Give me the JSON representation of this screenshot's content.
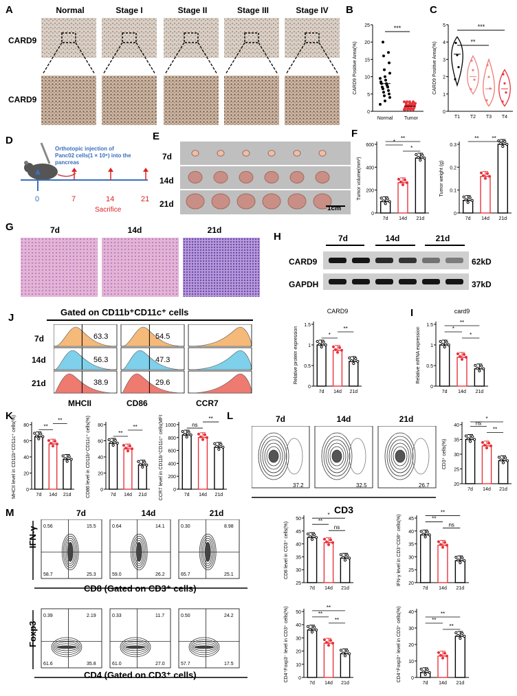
{
  "panels": {
    "A": "A",
    "B": "B",
    "C": "C",
    "D": "D",
    "E": "E",
    "F": "F",
    "G": "G",
    "H": "H",
    "I": "I",
    "J": "J",
    "K": "K",
    "L": "L",
    "M": "M"
  },
  "panel_A": {
    "stages": [
      "Normal",
      "Stage I",
      "Stage II",
      "Stage III",
      "Stage IV"
    ],
    "row_label": "CARD9"
  },
  "panel_D": {
    "injection_text": "Orthotopic injection of Panc02 cells(1 × 10⁶) into the pancreas",
    "timepoints": [
      "0",
      "7",
      "14",
      "21"
    ],
    "sacrifice": "Sacrifice"
  },
  "panel_E": {
    "rows": [
      "7d",
      "14d",
      "21d"
    ],
    "scale": "1cm"
  },
  "panel_G": {
    "cols": [
      "7d",
      "14d",
      "21d"
    ]
  },
  "panel_H": {
    "cols": [
      "7d",
      "14d",
      "21d"
    ],
    "bands": [
      "CARD9",
      "GAPDH"
    ],
    "sizes": [
      "62kD",
      "37kD"
    ]
  },
  "panel_J": {
    "header": "Gated on CD11b⁺CD11c⁺ cells",
    "rows": [
      "7d",
      "14d",
      "21d"
    ],
    "markers": [
      "MHCII",
      "CD86",
      "CCR7"
    ],
    "values": [
      [
        "63.3",
        "54.5"
      ],
      [
        "56.3",
        "47.3"
      ],
      [
        "38.9",
        "29.6"
      ]
    ]
  },
  "panel_L": {
    "cols": [
      "7d",
      "14d",
      "21d"
    ],
    "xlabel": "CD3",
    "values": [
      "37.2",
      "32.5",
      "26.7"
    ]
  },
  "panel_M": {
    "cols": [
      "7d",
      "14d",
      "21d"
    ],
    "row1_y": "IFN-γ",
    "row1_x": "CD8 (Gated on CD3⁺ cells)",
    "row1_q": [
      [
        "0.56",
        "15.5",
        "58.7",
        "25.3"
      ],
      [
        "0.64",
        "14.1",
        "59.0",
        "26.2"
      ],
      [
        "0.30",
        "8.98",
        "65.7",
        "25.1"
      ]
    ],
    "row2_y": "Foxp3",
    "row2_x": "CD4 (Gated on CD3⁺ cells)",
    "row2_q": [
      [
        "0.39",
        "2.19",
        "61.6",
        "35.8"
      ],
      [
        "0.33",
        "11.7",
        "61.0",
        "27.0"
      ],
      [
        "0.50",
        "24.2",
        "57.7",
        "17.5"
      ]
    ]
  },
  "colors": {
    "black": "#000000",
    "red": "#e8333a",
    "pink": "#f08080",
    "orange": "#f5b97a",
    "blue": "#7fd0ea",
    "salmon": "#ee7a70"
  },
  "chart_data": [
    {
      "id": "B",
      "type": "scatter",
      "categories": [
        "Normal",
        "Tumor"
      ],
      "ylabel": "CARD9 Positive Area(%)",
      "ylim": [
        0,
        25
      ],
      "yticks": [
        0,
        5,
        10,
        15,
        20,
        25
      ],
      "means": [
        8,
        1.5
      ],
      "sig": [
        "***"
      ]
    },
    {
      "id": "C",
      "type": "violin",
      "categories": [
        "T1",
        "T2",
        "T3",
        "T4"
      ],
      "ylabel": "CARD9 Positive Area(%)",
      "ylim": [
        0,
        5
      ],
      "yticks": [
        0,
        1,
        2,
        3,
        4,
        5
      ],
      "medians": [
        3.3,
        2.0,
        1.3,
        1.3
      ],
      "sig": [
        "**",
        "***"
      ]
    },
    {
      "id": "F1",
      "type": "bar",
      "categories": [
        "7d",
        "14d",
        "21d"
      ],
      "ylabel": "Tumor volume(mm³)",
      "ylim": [
        0,
        600
      ],
      "yticks": [
        0,
        200,
        400,
        600
      ],
      "values": [
        100,
        265,
        480
      ],
      "sig": [
        "*",
        "*",
        "**"
      ]
    },
    {
      "id": "F2",
      "type": "bar",
      "categories": [
        "7d",
        "14d",
        "21d"
      ],
      "ylabel": "Tumor weight (g)",
      "ylim": [
        0,
        0.3
      ],
      "yticks": [
        0.0,
        0.1,
        0.2,
        0.3
      ],
      "values": [
        0.055,
        0.16,
        0.3
      ],
      "sig": [
        "**",
        "**"
      ]
    },
    {
      "id": "H2",
      "type": "bar",
      "title": "CARD9",
      "categories": [
        "7d",
        "14d",
        "21d"
      ],
      "ylabel": "Relative protein expression",
      "ylim": [
        0,
        1.5
      ],
      "yticks": [
        0.0,
        0.5,
        1.0,
        1.5
      ],
      "values": [
        1.0,
        0.87,
        0.6
      ],
      "sig": [
        "*",
        "**"
      ]
    },
    {
      "id": "I",
      "type": "bar",
      "title": "card9",
      "categories": [
        "7d",
        "14d",
        "21d"
      ],
      "ylabel": "Relative mRNA expression",
      "ylim": [
        0,
        1.5
      ],
      "yticks": [
        0.0,
        0.5,
        1.0,
        1.5
      ],
      "values": [
        1.0,
        0.7,
        0.42
      ],
      "sig": [
        "*",
        "*",
        "**"
      ]
    },
    {
      "id": "K1",
      "type": "bar",
      "categories": [
        "7d",
        "14d",
        "21d"
      ],
      "ylabel": "MHCII level in CD11b⁺CD11c⁺ cells(%)",
      "ylim": [
        0,
        80
      ],
      "yticks": [
        0,
        20,
        40,
        60,
        80
      ],
      "values": [
        65,
        56,
        37
      ],
      "sig": [
        "**",
        "**"
      ]
    },
    {
      "id": "K2",
      "type": "bar",
      "categories": [
        "7d",
        "14d",
        "21d"
      ],
      "ylabel": "CD86 level in CD11b⁺CD11c⁺ cells(%)",
      "ylim": [
        0,
        80
      ],
      "yticks": [
        0,
        20,
        40,
        60,
        80
      ],
      "values": [
        57,
        50,
        30
      ],
      "sig": [
        "**",
        "**"
      ]
    },
    {
      "id": "K3",
      "type": "bar",
      "categories": [
        "7d",
        "14d",
        "21d"
      ],
      "ylabel": "CCR7 level in CD11b⁺CD11c⁺ cells(MFI)",
      "ylim": [
        0,
        1000
      ],
      "yticks": [
        0,
        200,
        400,
        600,
        800,
        1000
      ],
      "values": [
        840,
        800,
        650
      ],
      "sig": [
        "ns",
        "**"
      ]
    },
    {
      "id": "L2",
      "type": "bar",
      "categories": [
        "7d",
        "14d",
        "21d"
      ],
      "ylabel": "CD3⁺ cells(%)",
      "ylim": [
        20,
        40
      ],
      "yticks": [
        20,
        25,
        30,
        35,
        40
      ],
      "values": [
        35,
        32.8,
        27.8
      ],
      "sig": [
        "**",
        "ns",
        "*"
      ]
    },
    {
      "id": "M1",
      "type": "bar",
      "categories": [
        "7d",
        "14d",
        "21d"
      ],
      "ylabel": "CD8 level in CD3⁺ cells(%)",
      "ylim": [
        25,
        50
      ],
      "yticks": [
        25,
        30,
        35,
        40,
        45,
        50
      ],
      "values": [
        42.5,
        40.5,
        34.5
      ],
      "sig": [
        "ns",
        "**",
        "*"
      ]
    },
    {
      "id": "M2",
      "type": "bar",
      "categories": [
        "7d",
        "14d",
        "21d"
      ],
      "ylabel": "IFN-γ level in CD3⁺CD8⁺ cells(%)",
      "ylim": [
        20,
        45
      ],
      "yticks": [
        20,
        25,
        30,
        35,
        40,
        45
      ],
      "values": [
        38.5,
        34.5,
        28.5
      ],
      "sig": [
        "ns",
        "**",
        "**"
      ]
    },
    {
      "id": "M3",
      "type": "bar",
      "categories": [
        "7d",
        "14d",
        "21d"
      ],
      "ylabel": "CD4⁺Foxp3⁻ level in CD3⁺ cells(%)",
      "ylim": [
        0,
        50
      ],
      "yticks": [
        0,
        10,
        20,
        30,
        40,
        50
      ],
      "values": [
        36,
        26,
        18
      ],
      "sig": [
        "**",
        "**",
        "**"
      ]
    },
    {
      "id": "M4",
      "type": "bar",
      "categories": [
        "7d",
        "14d",
        "21d"
      ],
      "ylabel": "CD4⁺Foxp3⁺ level in CD3⁺ cells(%)",
      "ylim": [
        0,
        40
      ],
      "yticks": [
        0,
        10,
        20,
        30,
        40
      ],
      "values": [
        3,
        13,
        25
      ],
      "sig": [
        "**",
        "**",
        "**"
      ]
    }
  ]
}
